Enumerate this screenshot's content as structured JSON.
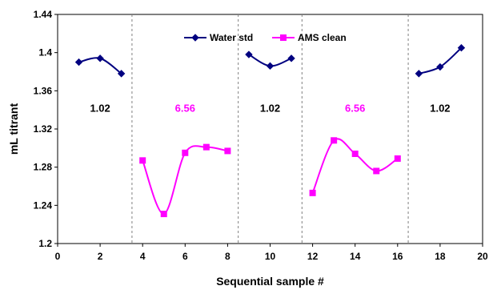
{
  "chart_data": {
    "type": "line",
    "xlabel": "Sequential sample #",
    "ylabel": "mL titrant",
    "xlim": [
      0,
      20
    ],
    "ylim": [
      1.2,
      1.44
    ],
    "xticks": [
      "0",
      "2",
      "4",
      "6",
      "8",
      "10",
      "12",
      "14",
      "16",
      "18",
      "20"
    ],
    "yticks": [
      "1.2",
      "1.24",
      "1.28",
      "1.32",
      "1.36",
      "1.4",
      "1.44"
    ],
    "grid": false,
    "legend_position": "top-center",
    "series": [
      {
        "name": "Water std",
        "color": "#000080",
        "marker": "diamond",
        "segments": [
          [
            [
              1,
              1.39
            ],
            [
              2,
              1.394
            ],
            [
              3,
              1.378
            ]
          ],
          [
            [
              9,
              1.398
            ],
            [
              10,
              1.386
            ],
            [
              11,
              1.394
            ]
          ],
          [
            [
              17,
              1.378
            ],
            [
              18,
              1.385
            ],
            [
              19,
              1.405
            ]
          ]
        ]
      },
      {
        "name": "AMS clean",
        "color": "#FF00FF",
        "marker": "square",
        "segments": [
          [
            [
              4,
              1.287
            ],
            [
              5,
              1.231
            ],
            [
              6,
              1.295
            ],
            [
              7,
              1.301
            ],
            [
              8,
              1.297
            ]
          ],
          [
            [
              12,
              1.253
            ],
            [
              13,
              1.308
            ],
            [
              14,
              1.294
            ],
            [
              15,
              1.276
            ],
            [
              16,
              1.289
            ]
          ]
        ]
      }
    ],
    "dividers_x": [
      3.5,
      8.5,
      11.5,
      16.5
    ],
    "annotations": [
      {
        "text": "1.02",
        "x": 2,
        "y": 1.338,
        "color": "#000000"
      },
      {
        "text": "6.56",
        "x": 6,
        "y": 1.338,
        "color": "#FF00FF"
      },
      {
        "text": "1.02",
        "x": 10,
        "y": 1.338,
        "color": "#000000"
      },
      {
        "text": "6.56",
        "x": 14,
        "y": 1.338,
        "color": "#FF00FF"
      },
      {
        "text": "1.02",
        "x": 18,
        "y": 1.338,
        "color": "#000000"
      }
    ]
  }
}
